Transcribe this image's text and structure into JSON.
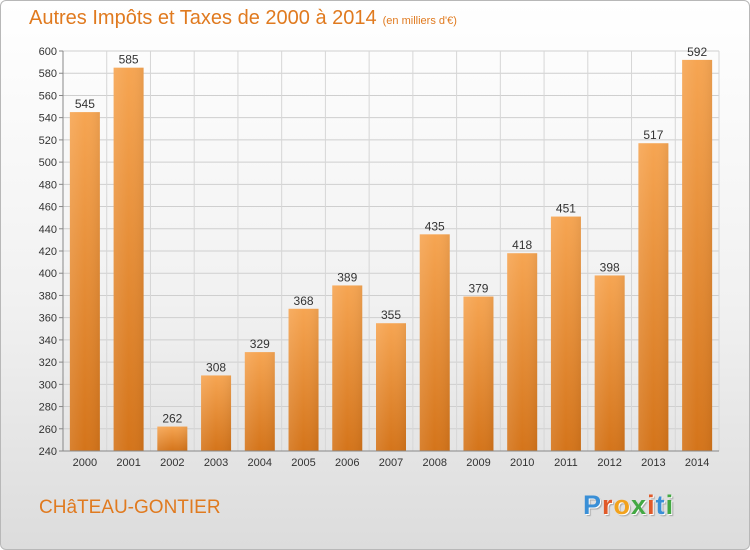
{
  "chart_data": {
    "type": "bar",
    "title": "Autres Impôts et Taxes de 2000 à 2014",
    "subtitle": "(en milliers d'€)",
    "categories": [
      "2000",
      "2001",
      "2002",
      "2003",
      "2004",
      "2005",
      "2006",
      "2007",
      "2008",
      "2009",
      "2010",
      "2011",
      "2012",
      "2013",
      "2014"
    ],
    "values": [
      545,
      585,
      262,
      308,
      329,
      368,
      389,
      355,
      435,
      379,
      418,
      451,
      398,
      517,
      592
    ],
    "ylim": [
      240,
      600
    ],
    "ytick_step": 20,
    "grid": true,
    "bar_color": "#ed8c33",
    "xlabel": "",
    "ylabel": ""
  },
  "footer": {
    "city": "CHâTEAU-GONTIER",
    "logo_letters": [
      {
        "char": "P",
        "color": "#3a8fd6"
      },
      {
        "char": "r",
        "color": "#e05a2a"
      },
      {
        "char": "o",
        "color": "#f2a21c"
      },
      {
        "char": "x",
        "color": "#43a843"
      },
      {
        "char": "i",
        "color": "#e05a2a"
      },
      {
        "char": "t",
        "color": "#3a8fd6"
      },
      {
        "char": "i",
        "color": "#43a843"
      }
    ]
  }
}
